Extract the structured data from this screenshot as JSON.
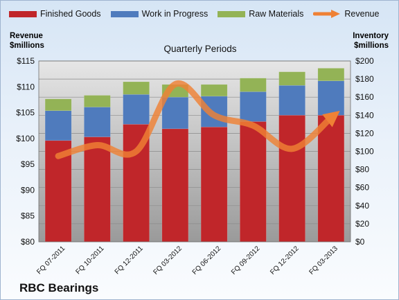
{
  "legend": {
    "finished_goods": "Finished Goods",
    "wip": "Work in Progress",
    "raw": "Raw Materials",
    "revenue": "Revenue"
  },
  "left_axis_title": [
    "Revenue",
    "$millions"
  ],
  "right_axis_title": [
    "Inventory",
    "$millions"
  ],
  "subtitle": "Quarterly Periods",
  "company": "RBC Bearings",
  "colors": {
    "finished_goods": "#c0262a",
    "wip": "#4f7bbd",
    "raw": "#93b356",
    "revenue": "#ef8135"
  },
  "chart_data": {
    "type": "bar",
    "stacked": true,
    "categories": [
      "FQ 07-2011",
      "FQ 10-2011",
      "FQ 12-2011",
      "FQ 03-2012",
      "FQ 06-2012",
      "FQ 09-2012",
      "FQ 12-2012",
      "FQ 03-2013"
    ],
    "series": [
      {
        "name": "Finished Goods",
        "axis": "right",
        "values": [
          112,
          116,
          130,
          125,
          127,
          133,
          140,
          140
        ]
      },
      {
        "name": "Work in Progress",
        "axis": "right",
        "values": [
          33,
          33,
          33,
          35,
          34,
          33,
          33,
          38
        ]
      },
      {
        "name": "Raw Materials",
        "axis": "right",
        "values": [
          13,
          13,
          14,
          14,
          13,
          15,
          15,
          14
        ]
      },
      {
        "name": "Revenue",
        "type": "line",
        "axis": "left",
        "values": [
          96.6,
          98.7,
          97.5,
          110.5,
          104.5,
          102.5,
          98.0,
          104.0
        ]
      }
    ],
    "left_axis": {
      "min": 80,
      "max": 115,
      "step": 5,
      "tick_labels": [
        "$80",
        "$85",
        "$90",
        "$95",
        "$100",
        "$105",
        "$110",
        "$115"
      ]
    },
    "right_axis": {
      "min": 0,
      "max": 200,
      "step": 20,
      "tick_labels": [
        "$0",
        "$20",
        "$40",
        "$60",
        "$80",
        "$100",
        "$120",
        "$140",
        "$160",
        "$180",
        "$200"
      ]
    },
    "grid": true,
    "legend_position": "top"
  }
}
